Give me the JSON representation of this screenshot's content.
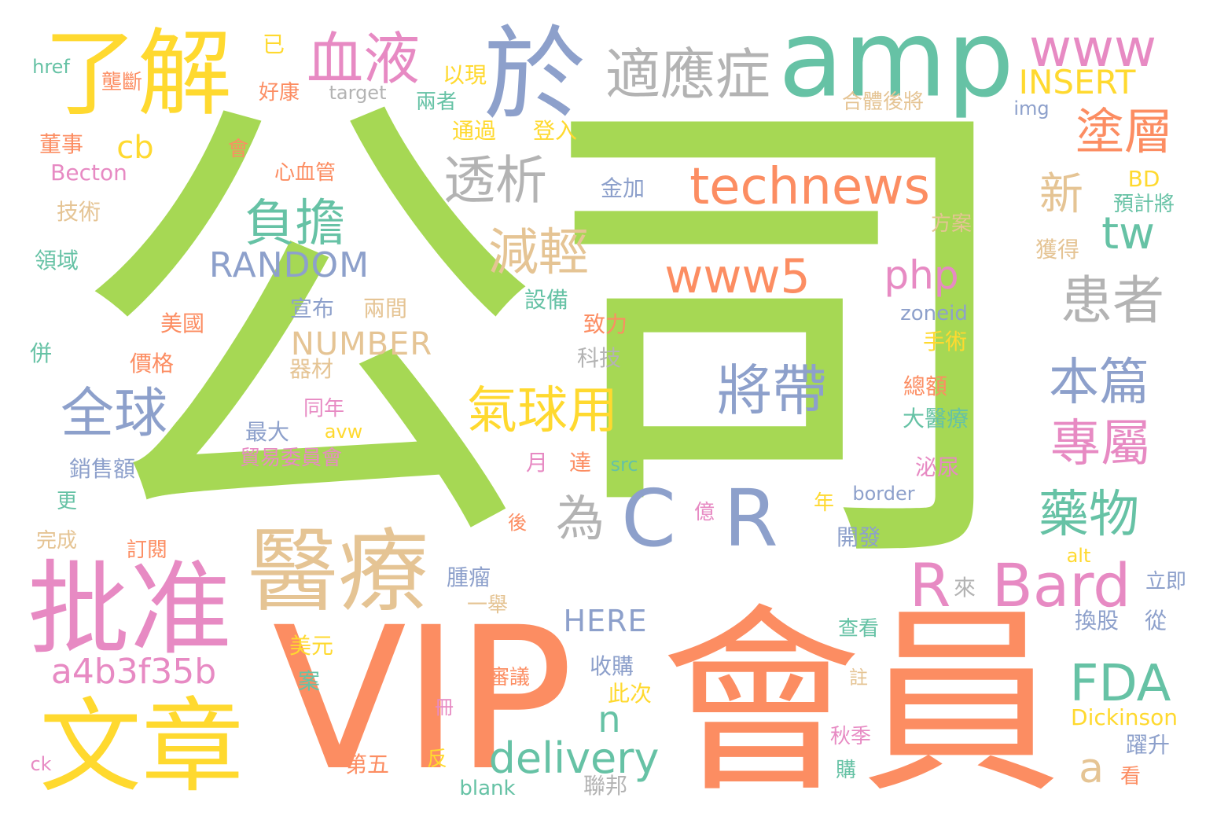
{
  "palette": {
    "green": "#a6d854",
    "orange": "#fc8d62",
    "teal": "#66c2a5",
    "blue": "#8da0cb",
    "pink": "#e78ac3",
    "yellow": "#ffd92f",
    "tan": "#e5c494",
    "gray": "#b3b3b3"
  },
  "words": {
    "gongsi_gong": "公",
    "gongsi_si": "司",
    "vip": "VIP",
    "huiyuan": "會員",
    "amp": "amp",
    "yu": "於",
    "liaojie": "了解",
    "wenzhang": "文章",
    "pizhun": "批准",
    "yiliao": "醫療",
    "www": "www",
    "shiyingzheng": "適應症",
    "xueye": "血液",
    "technews": "technews",
    "tuceng": "塗層",
    "toushi": "透析",
    "fudan": "負擔",
    "insert": "INSERT",
    "cb": "cb",
    "xin": "新",
    "tw": "tw",
    "jianqing": "減輕",
    "random": "RANDOM",
    "www5": "www5",
    "php": "php",
    "huanzhe": "患者",
    "jiangdai": "將帶",
    "benpian": "本篇",
    "quanqiu": "全球",
    "qiqiuyong": "氣球用",
    "number": "NUMBER",
    "zhuanshu": "專屬",
    "c": "C",
    "r": "R",
    "wei": "為",
    "yaowu": "藥物",
    "bard": "Bard",
    "r_small": "R",
    "a4b": "a4b3f35b",
    "fda": "FDA",
    "delivery": "delivery",
    "n": "n",
    "a": "a",
    "here": "HERE",
    "dickinson": "Dickinson",
    "becton": "Becton",
    "href": "href",
    "yi_already": "已",
    "target": "target",
    "yixian": "以現",
    "liangzhe": "兩者",
    "tongguo": "通過",
    "dengru": "登入",
    "img": "img",
    "hetihoujiang": "合體後將",
    "lanuduan": "壟斷",
    "haokang": "好康",
    "dongshi": "董事",
    "hui": "會",
    "xinxueguan": "心血管",
    "jishu": "技術",
    "lingyu": "領域",
    "jinjia": "金加",
    "bd": "BD",
    "yujijiang": "預計將",
    "fangan": "方案",
    "huode": "獲得",
    "meiguo": "美國",
    "xuanbu": "宣布",
    "liangjian": "兩間",
    "shebei": "設備",
    "zhili": "致力",
    "zoneid": "zoneid",
    "shoushu": "手術",
    "bing": "併",
    "jiage": "價格",
    "qicai": "器材",
    "keji": "科技",
    "zonge": "總額",
    "tongnian": "同年",
    "zuida": "最大",
    "avw": "avw",
    "dayiliao": "大醫療",
    "maoyi": "貿易委員會",
    "xiaoshoue": "銷售額",
    "yue": "月",
    "da": "達",
    "src": "src",
    "miniao": "泌尿",
    "geng": "更",
    "border": "border",
    "nian": "年",
    "yi_hundred": "億",
    "hou": "後",
    "wancheng": "完成",
    "dingyue": "訂閱",
    "kaifa": "開發",
    "alt": "alt",
    "zhongliu": "腫瘤",
    "lai": "來",
    "liji": "立即",
    "yiju": "一舉",
    "huangu": "換股",
    "cong": "從",
    "chakan": "查看",
    "meiyuan": "美元",
    "shougou": "收購",
    "shenyi": "審議",
    "zhu": "註",
    "an": "案",
    "cici": "此次",
    "ce": "冊",
    "qiuji": "秋季",
    "yuesheng": "躍升",
    "diwu": "第五",
    "fan": "反",
    "gou": "購",
    "kan": "看",
    "ck": "ck",
    "blank": "blank",
    "lianbang": "聯邦"
  }
}
